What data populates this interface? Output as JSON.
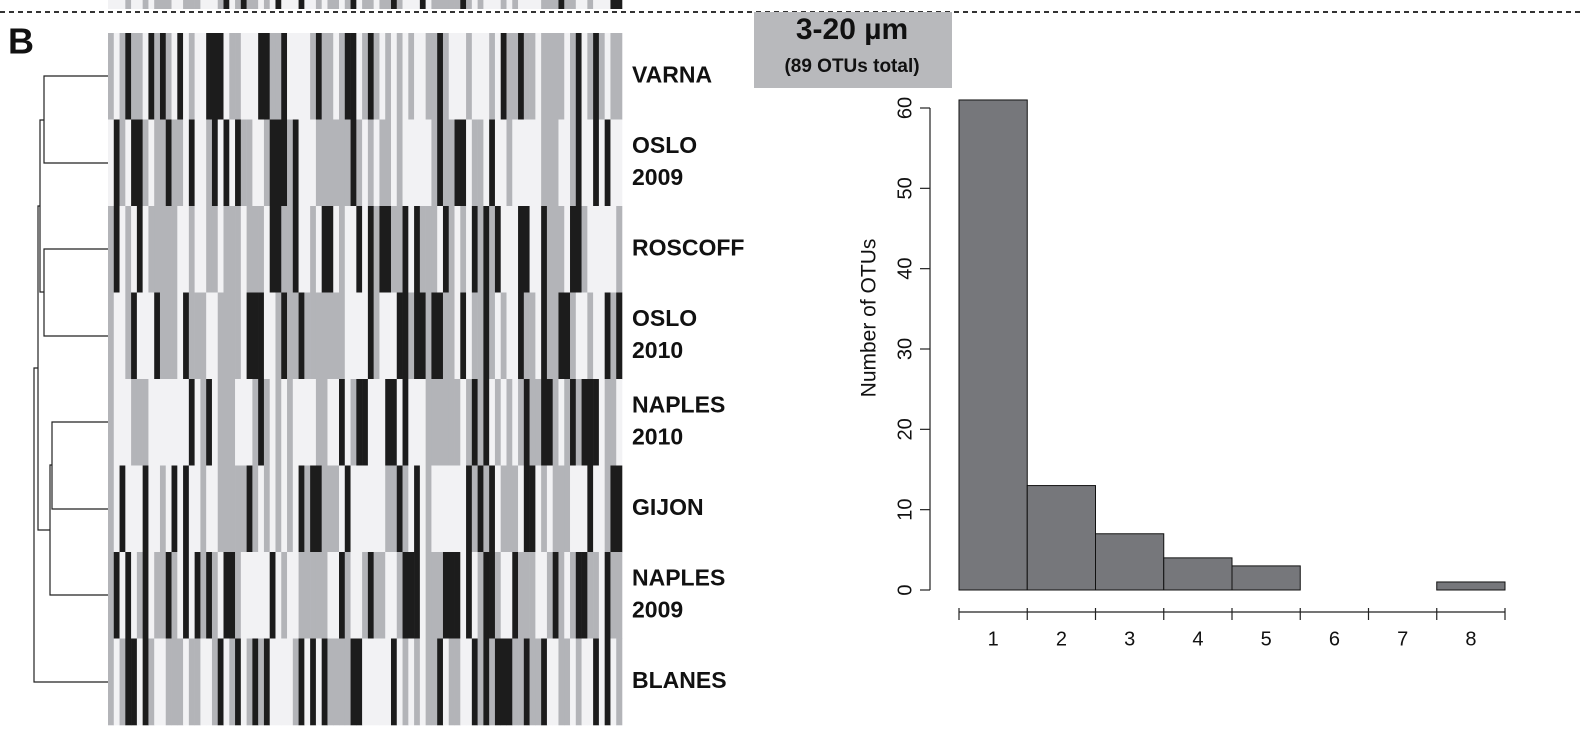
{
  "panel_label": "B",
  "row_labels": [
    [
      "VARNA"
    ],
    [
      "OSLO",
      "2009"
    ],
    [
      "ROSCOFF"
    ],
    [
      "OSLO",
      "2010"
    ],
    [
      "NAPLES",
      "2010"
    ],
    [
      "GIJON"
    ],
    [
      "NAPLES",
      "2009"
    ],
    [
      "BLANES"
    ]
  ],
  "chart_data": {
    "type": "histogram",
    "title": "3-20 µm",
    "subtitle": "(89 OTUs total)",
    "y_label": "Number of OTUs",
    "bins": [
      0.5,
      1.5,
      2.5,
      3.5,
      4.5,
      5.5,
      6.5,
      7.5,
      8.5
    ],
    "values": [
      61,
      13,
      7,
      4,
      3,
      0,
      0,
      1
    ],
    "color": "#76777b",
    "xlim": [
      0.5,
      8.5
    ],
    "xticks": [
      1,
      2,
      3,
      4,
      5,
      6,
      7,
      8
    ],
    "ylim": [
      0,
      60
    ],
    "yticks": [
      0,
      10,
      20,
      30,
      40,
      50,
      60
    ]
  }
}
